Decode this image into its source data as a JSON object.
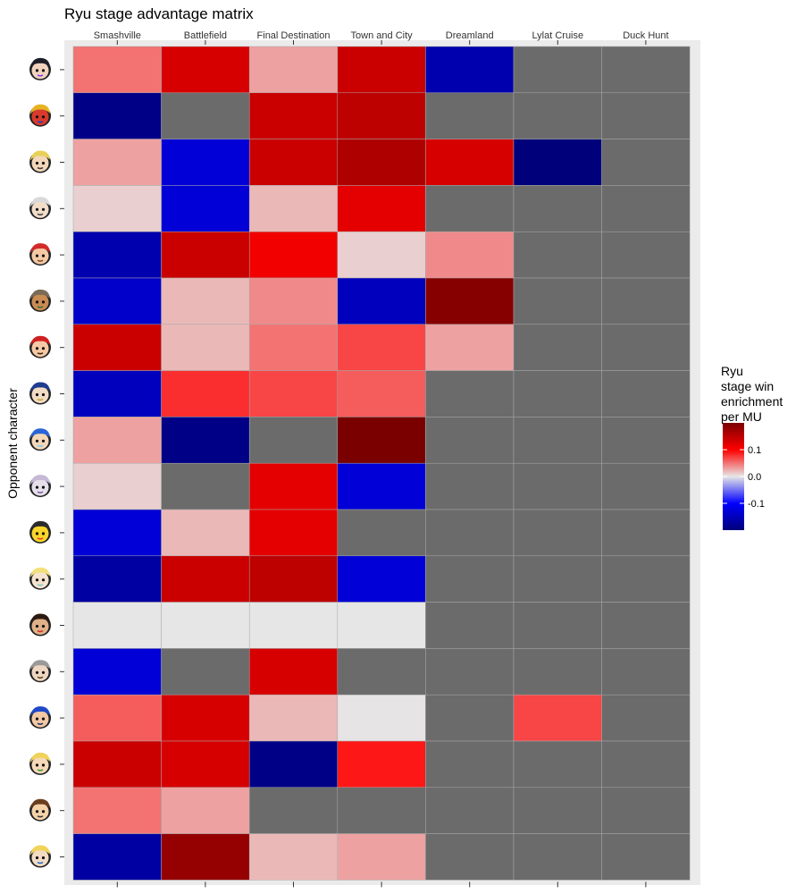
{
  "chart_data": {
    "type": "heatmap",
    "title": "Ryu stage advantage matrix",
    "xlabel": "",
    "ylabel": "Opponent character",
    "x_axis_position": "top",
    "categories_x": [
      "Smashville",
      "Battlefield",
      "Final Destination",
      "Town and City",
      "Dreamland",
      "Lylat Cruise",
      "Duck Hunt"
    ],
    "rows": [
      {
        "icon": "bayonetta-icon",
        "values": [
          0.05,
          0.13,
          0.03,
          0.14,
          -0.16,
          null,
          null
        ]
      },
      {
        "icon": "captain-falcon-icon",
        "values": [
          -0.19,
          null,
          0.14,
          0.15,
          null,
          null,
          null
        ]
      },
      {
        "icon": "cloud-icon",
        "values": [
          0.03,
          -0.13,
          0.14,
          0.16,
          0.13,
          -0.2,
          null
        ]
      },
      {
        "icon": "corrin-icon",
        "values": [
          0.01,
          -0.13,
          0.02,
          0.12,
          null,
          null,
          null
        ]
      },
      {
        "icon": "diddy-kong-icon",
        "values": [
          -0.16,
          0.14,
          0.11,
          0.01,
          0.04,
          null,
          null
        ]
      },
      {
        "icon": "fox-icon",
        "values": [
          -0.14,
          0.02,
          0.04,
          -0.15,
          0.19,
          null,
          null
        ]
      },
      {
        "icon": "mario-icon",
        "values": [
          0.14,
          0.02,
          0.05,
          0.07,
          0.03,
          null,
          null
        ]
      },
      {
        "icon": "marth-icon",
        "values": [
          -0.15,
          0.08,
          0.07,
          0.06,
          null,
          null,
          null
        ]
      },
      {
        "icon": "mega-man-icon",
        "values": [
          0.03,
          -0.19,
          null,
          0.2,
          null,
          null,
          null
        ]
      },
      {
        "icon": "mewtwo-icon",
        "values": [
          0.01,
          null,
          0.12,
          -0.13,
          null,
          null,
          null
        ]
      },
      {
        "icon": "pikachu-icon",
        "values": [
          -0.13,
          0.02,
          0.12,
          null,
          null,
          null,
          null
        ]
      },
      {
        "icon": "rosalina-icon",
        "values": [
          -0.17,
          0.14,
          0.15,
          -0.13,
          null,
          null,
          null
        ]
      },
      {
        "icon": "ryu-icon",
        "values": [
          0.0,
          0.0,
          0.0,
          0.0,
          null,
          null,
          null
        ]
      },
      {
        "icon": "robin-icon",
        "values": [
          -0.13,
          null,
          0.13,
          null,
          null,
          null,
          null
        ]
      },
      {
        "icon": "sonic-icon",
        "values": [
          0.06,
          0.13,
          0.02,
          0.001,
          null,
          0.07,
          null
        ]
      },
      {
        "icon": "toon-link-icon",
        "values": [
          0.14,
          0.13,
          -0.19,
          0.09,
          null,
          null,
          null
        ]
      },
      {
        "icon": "villager-icon",
        "values": [
          0.05,
          0.03,
          null,
          null,
          null,
          null,
          null
        ]
      },
      {
        "icon": "zero-suit-samus-icon",
        "values": [
          -0.17,
          0.18,
          0.02,
          0.03,
          null,
          null,
          null
        ]
      }
    ],
    "missing_color": "#6b6b6b",
    "colorbar": {
      "title_lines": [
        "Ryu",
        "stage win",
        "enrichment",
        "per MU"
      ],
      "ticks": [
        0.1,
        0.0,
        -0.1
      ],
      "tick_labels": [
        "0.1",
        "0.0",
        "-0.1"
      ],
      "range": [
        -0.2,
        0.2
      ],
      "placement": "right"
    },
    "colors": {
      "panel_background": "#ebebeb",
      "cell_border": "#a8a8a8",
      "neg_max": "#00007a",
      "neg_mid": "#0000ff",
      "zero": "#e6e6e6",
      "pos_mid": "#ff0000",
      "pos_max": "#7a0000"
    }
  }
}
